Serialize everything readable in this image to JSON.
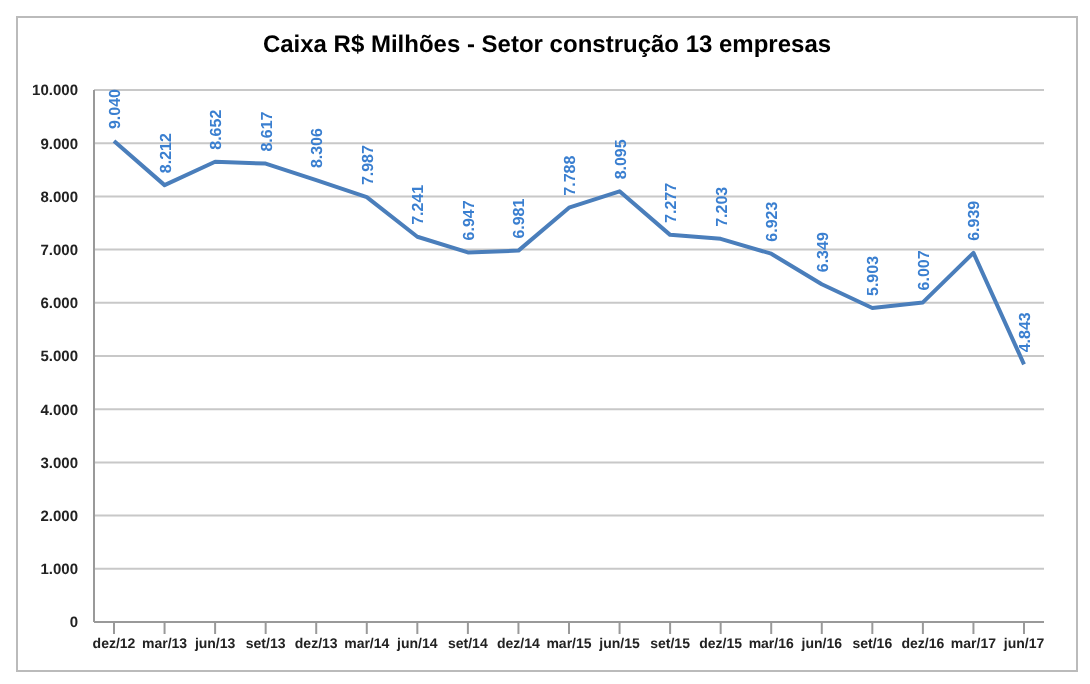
{
  "chart_data": {
    "type": "line",
    "title": "Caixa R$ Milhões - Setor construção 13 empresas",
    "categories": [
      "dez/12",
      "mar/13",
      "jun/13",
      "set/13",
      "dez/13",
      "mar/14",
      "jun/14",
      "set/14",
      "dez/14",
      "mar/15",
      "jun/15",
      "set/15",
      "dez/15",
      "mar/16",
      "jun/16",
      "set/16",
      "dez/16",
      "mar/17",
      "jun/17"
    ],
    "series": [
      {
        "color": "#4a7ebb",
        "values": [
          9040,
          8212,
          8652,
          8617,
          8306,
          7987,
          7241,
          6947,
          6981,
          7788,
          8095,
          7277,
          7203,
          6923,
          6349,
          5903,
          6007,
          6939,
          4843
        ],
        "value_labels": [
          "9.040",
          "8.212",
          "8.652",
          "8.617",
          "8.306",
          "7.987",
          "7.241",
          "6.947",
          "6.981",
          "7.788",
          "8.095",
          "7.277",
          "7.203",
          "6.923",
          "6.349",
          "5.903",
          "6.007",
          "6.939",
          "4.843"
        ]
      }
    ],
    "ylim": [
      0,
      10000
    ],
    "yticks": [
      0,
      {
        "value": 1000,
        "label": "1.000"
      },
      {
        "value": 2000,
        "label": "2.000"
      },
      {
        "value": 3000,
        "label": "3.000"
      },
      {
        "value": 4000,
        "label": "4.000"
      },
      {
        "value": 5000,
        "label": "5.000"
      },
      {
        "value": 6000,
        "label": "6.000"
      },
      {
        "value": 7000,
        "label": "7.000"
      },
      {
        "value": 8000,
        "label": "8.000"
      },
      {
        "value": 9000,
        "label": "9.000"
      },
      {
        "value": 10000,
        "label": "10.000"
      }
    ],
    "grid": "y",
    "marker": "none",
    "line_style": "solid"
  }
}
